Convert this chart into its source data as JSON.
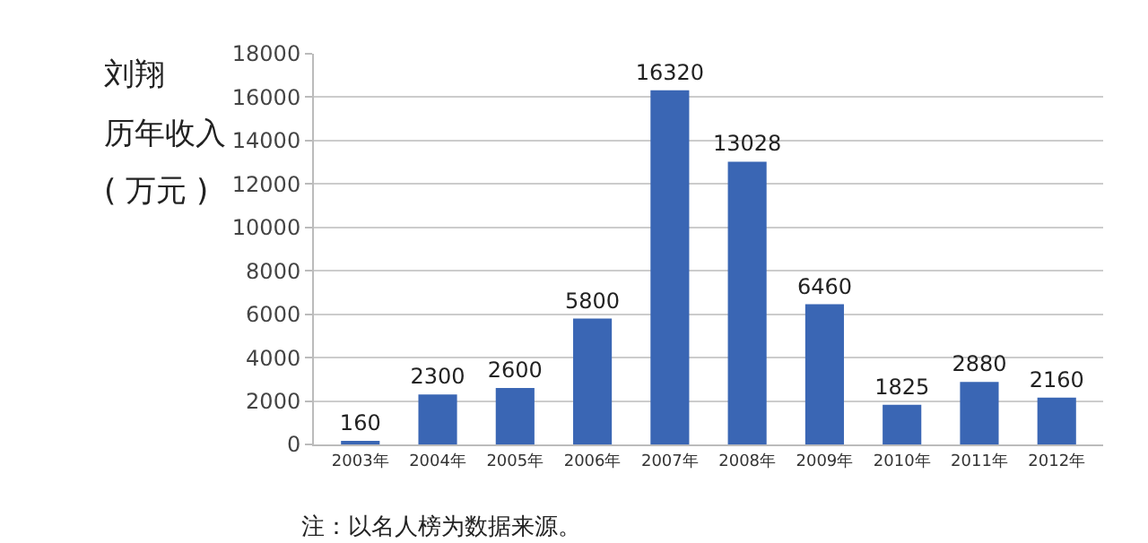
{
  "chart_data": {
    "type": "bar",
    "title": "刘翔",
    "subtitle": "历年收入",
    "ylabel": "( 万元 )",
    "categories": [
      "2003年",
      "2004年",
      "2005年",
      "2006年",
      "2007年",
      "2008年",
      "2009年",
      "2010年",
      "2011年",
      "2012年"
    ],
    "values": [
      160,
      2300,
      2600,
      5800,
      16320,
      13028,
      6460,
      1825,
      2880,
      2160
    ],
    "color": "#3a66b4",
    "ylim": [
      0,
      18000
    ],
    "yticks": [
      0,
      2000,
      4000,
      6000,
      8000,
      10000,
      12000,
      14000,
      16000,
      18000
    ],
    "grid": "y",
    "data_labels": true,
    "legend": false,
    "annotations": [
      "注：以名人榜为数据来源。"
    ]
  }
}
